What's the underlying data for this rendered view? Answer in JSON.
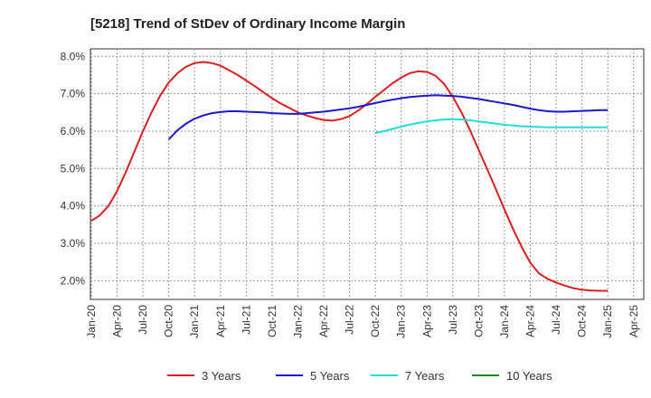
{
  "chart_data": {
    "type": "line",
    "title": "[5218]  Trend of StDev of Ordinary Income Margin",
    "xlabel": "",
    "ylabel": "",
    "x_tick_labels": [
      "Jan-20",
      "Apr-20",
      "Jul-20",
      "Oct-20",
      "Jan-21",
      "Apr-21",
      "Jul-21",
      "Oct-21",
      "Jan-22",
      "Apr-22",
      "Jul-22",
      "Oct-22",
      "Jan-23",
      "Apr-23",
      "Jul-23",
      "Oct-23",
      "Jan-24",
      "Apr-24",
      "Jul-24",
      "Oct-24",
      "Jan-25",
      "Apr-25"
    ],
    "y_tick_labels": [
      "2.0%",
      "3.0%",
      "4.0%",
      "5.0%",
      "6.0%",
      "7.0%",
      "8.0%"
    ],
    "ylim": [
      1.5,
      8.2
    ],
    "grid": true,
    "legend_position": "bottom",
    "series": [
      {
        "name": "3 Years",
        "color": "#dd1f1f",
        "x": [
          "Jan-20",
          "Feb-20",
          "Mar-20",
          "Apr-20",
          "May-20",
          "Jun-20",
          "Jul-20",
          "Aug-20",
          "Sep-20",
          "Oct-20",
          "Nov-20",
          "Dec-20",
          "Jan-21",
          "Feb-21",
          "Mar-21",
          "Apr-21",
          "May-21",
          "Jun-21",
          "Jul-21",
          "Aug-21",
          "Sep-21",
          "Oct-21",
          "Nov-21",
          "Dec-21",
          "Jan-22",
          "Feb-22",
          "Mar-22",
          "Apr-22",
          "May-22",
          "Jun-22",
          "Jul-22",
          "Aug-22",
          "Sep-22",
          "Oct-22",
          "Nov-22",
          "Dec-22",
          "Jan-23",
          "Feb-23",
          "Mar-23",
          "Apr-23",
          "May-23",
          "Jun-23",
          "Jul-23",
          "Aug-23",
          "Sep-23",
          "Oct-23",
          "Nov-23",
          "Dec-23",
          "Jan-24",
          "Feb-24",
          "Mar-24",
          "Apr-24",
          "May-24",
          "Jun-24",
          "Jul-24",
          "Aug-24",
          "Sep-24",
          "Oct-24",
          "Nov-24",
          "Dec-24",
          "Jan-25"
        ],
        "values": [
          3.6,
          3.75,
          4.0,
          4.4,
          4.9,
          5.45,
          6.0,
          6.5,
          6.95,
          7.3,
          7.55,
          7.72,
          7.82,
          7.85,
          7.82,
          7.75,
          7.63,
          7.5,
          7.35,
          7.2,
          7.04,
          6.88,
          6.74,
          6.62,
          6.5,
          6.42,
          6.35,
          6.3,
          6.28,
          6.32,
          6.4,
          6.55,
          6.72,
          6.92,
          7.1,
          7.28,
          7.43,
          7.55,
          7.6,
          7.58,
          7.48,
          7.26,
          6.92,
          6.5,
          6.02,
          5.5,
          4.98,
          4.45,
          3.9,
          3.38,
          2.9,
          2.48,
          2.2,
          2.05,
          1.95,
          1.87,
          1.8,
          1.76,
          1.74,
          1.73,
          1.73
        ]
      },
      {
        "name": "5 Years",
        "color": "#1a1acc",
        "x": [
          "Oct-20",
          "Nov-20",
          "Dec-20",
          "Jan-21",
          "Feb-21",
          "Mar-21",
          "Apr-21",
          "May-21",
          "Jun-21",
          "Jul-21",
          "Aug-21",
          "Sep-21",
          "Oct-21",
          "Nov-21",
          "Dec-21",
          "Jan-22",
          "Feb-22",
          "Mar-22",
          "Apr-22",
          "May-22",
          "Jun-22",
          "Jul-22",
          "Aug-22",
          "Sep-22",
          "Oct-22",
          "Nov-22",
          "Dec-22",
          "Jan-23",
          "Feb-23",
          "Mar-23",
          "Apr-23",
          "May-23",
          "Jun-23",
          "Jul-23",
          "Aug-23",
          "Sep-23",
          "Oct-23",
          "Nov-23",
          "Dec-23",
          "Jan-24",
          "Feb-24",
          "Mar-24",
          "Apr-24",
          "May-24",
          "Jun-24",
          "Jul-24",
          "Aug-24",
          "Sep-24",
          "Oct-24",
          "Nov-24",
          "Dec-24",
          "Jan-25"
        ],
        "values": [
          5.78,
          6.02,
          6.2,
          6.33,
          6.42,
          6.48,
          6.51,
          6.53,
          6.53,
          6.52,
          6.51,
          6.5,
          6.48,
          6.47,
          6.46,
          6.46,
          6.48,
          6.5,
          6.52,
          6.55,
          6.58,
          6.61,
          6.65,
          6.7,
          6.75,
          6.8,
          6.84,
          6.88,
          6.91,
          6.93,
          6.95,
          6.96,
          6.95,
          6.94,
          6.92,
          6.89,
          6.86,
          6.82,
          6.78,
          6.74,
          6.7,
          6.65,
          6.6,
          6.56,
          6.53,
          6.52,
          6.52,
          6.53,
          6.54,
          6.55,
          6.56,
          6.56
        ]
      },
      {
        "name": "7 Years",
        "color": "#22dddd",
        "x": [
          "Oct-22",
          "Nov-22",
          "Dec-22",
          "Jan-23",
          "Feb-23",
          "Mar-23",
          "Apr-23",
          "May-23",
          "Jun-23",
          "Jul-23",
          "Aug-23",
          "Sep-23",
          "Oct-23",
          "Nov-23",
          "Dec-23",
          "Jan-24",
          "Feb-24",
          "Mar-24",
          "Apr-24",
          "May-24",
          "Jun-24",
          "Jul-24",
          "Aug-24",
          "Sep-24",
          "Oct-24",
          "Nov-24",
          "Dec-24",
          "Jan-25"
        ],
        "values": [
          5.95,
          6.0,
          6.06,
          6.12,
          6.17,
          6.22,
          6.26,
          6.29,
          6.31,
          6.32,
          6.31,
          6.29,
          6.26,
          6.23,
          6.2,
          6.17,
          6.15,
          6.13,
          6.12,
          6.11,
          6.1,
          6.1,
          6.1,
          6.1,
          6.1,
          6.1,
          6.1,
          6.1
        ]
      },
      {
        "name": "10 Years",
        "color": "#1a8c1a",
        "x": [],
        "values": []
      }
    ]
  }
}
